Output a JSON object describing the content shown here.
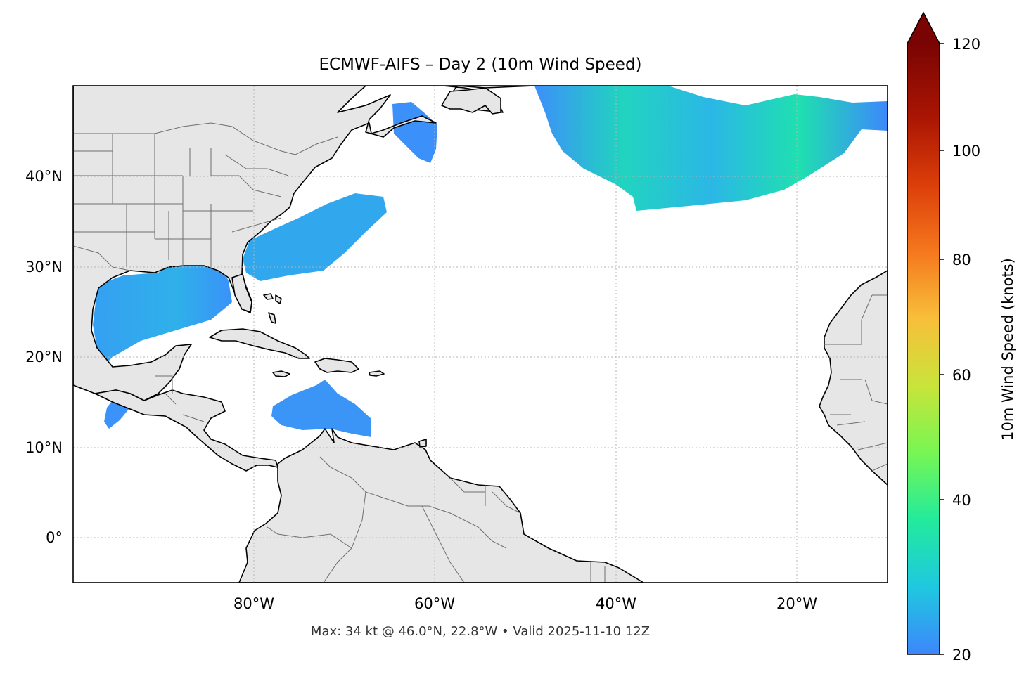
{
  "title": "ECMWF-AIFS – Day 2 (10m Wind Speed)",
  "footer": "Max: 34 kt @ 46.0°N, 22.8°W • Valid 2025-11-10 12Z",
  "colorbar": {
    "label": "10m Wind Speed (knots)",
    "ticks": [
      "20",
      "40",
      "60",
      "80",
      "100",
      "120"
    ],
    "min": 20,
    "max": 120,
    "extend": "max",
    "colors": [
      "#3d86fb",
      "#1fc8e0",
      "#22eb9c",
      "#77f653",
      "#c9e43a",
      "#f8bf3a",
      "#f5771d",
      "#db3e09",
      "#a91503",
      "#6e0000"
    ]
  },
  "map": {
    "lon_ticks": [
      "80°W",
      "60°W",
      "40°W",
      "20°W"
    ],
    "lat_ticks": [
      "40°N",
      "30°N",
      "20°N",
      "10°N",
      "0°"
    ],
    "land_color": "#e6e6e6",
    "coast_color": "#000000",
    "border_color": "#6e6e6e",
    "grid": "dotted"
  }
}
